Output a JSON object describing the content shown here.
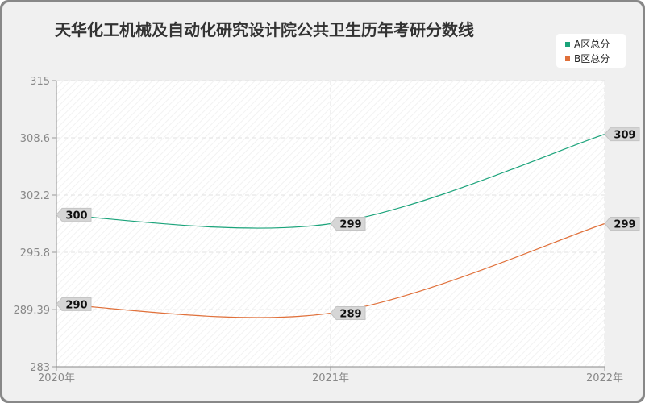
{
  "chart_data": {
    "type": "line",
    "title": "天华化工机械及自动化研究设计院公共卫生历年考研分数线",
    "xlabel": "",
    "ylabel": "",
    "categories": [
      "2020年",
      "2021年",
      "2022年"
    ],
    "y_ticks": [
      "315",
      "308.6",
      "302.2",
      "295.8",
      "289.39",
      "283"
    ],
    "ylim": [
      283,
      315
    ],
    "grid": true,
    "legend_position": "top-right",
    "series": [
      {
        "name": "A区总分",
        "values": [
          300,
          299,
          309
        ],
        "color": "#1aa37a"
      },
      {
        "name": "B区总分",
        "values": [
          290,
          289,
          299
        ],
        "color": "#e0703a"
      }
    ]
  }
}
